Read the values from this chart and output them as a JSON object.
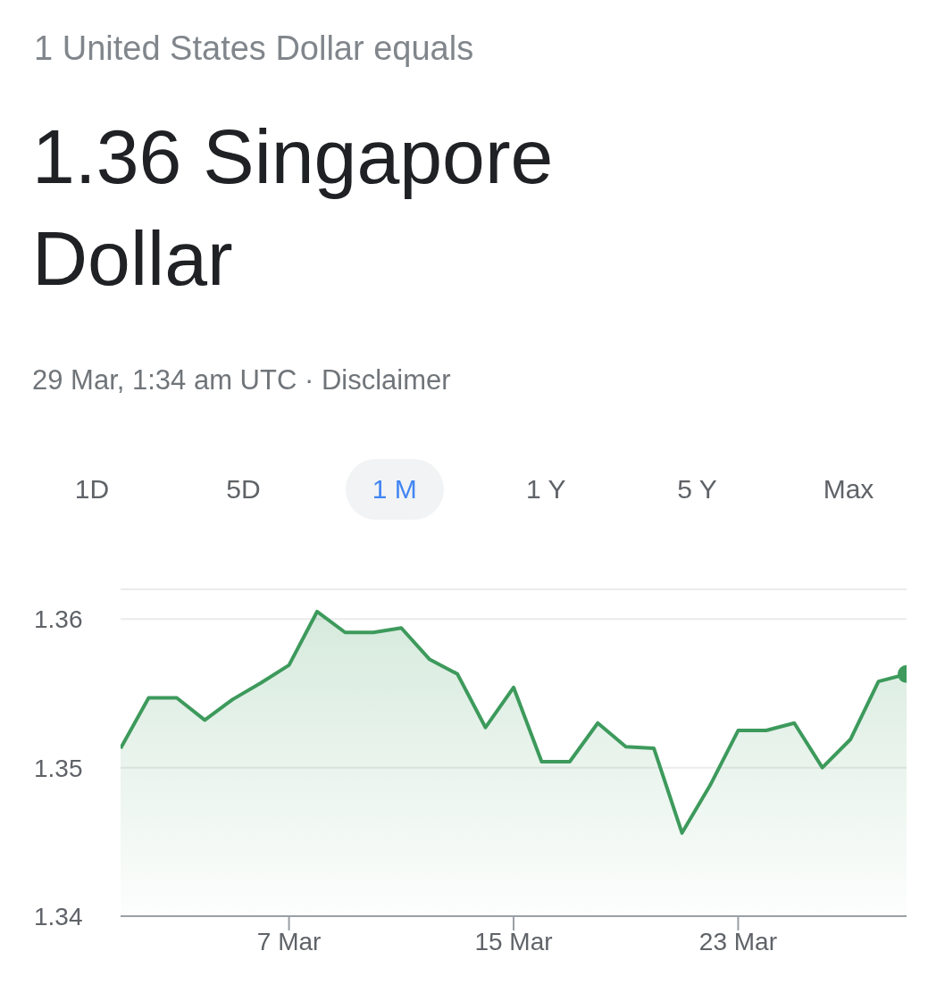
{
  "chart_data": {
    "type": "area",
    "subtitle": "1 United States Dollar equals",
    "title": "1.36 Singapore Dollar",
    "annotations": [
      "29 Mar, 1:34 am UTC · Disclaimer",
      "1D",
      "5D",
      "1 M",
      "1 Y",
      "5 Y",
      "Max"
    ],
    "x": [
      "--03-01",
      "--03-02",
      "--03-03",
      "--03-04",
      "--03-05",
      "--03-06",
      "--03-07",
      "--03-08",
      "--03-09",
      "--03-10",
      "--03-11",
      "--03-12",
      "--03-13",
      "--03-14",
      "--03-15",
      "--03-16",
      "--03-17",
      "--03-18",
      "--03-19",
      "--03-20",
      "--03-21",
      "--03-22",
      "--03-23",
      "--03-24",
      "--03-25",
      "--03-26",
      "--03-27",
      "--03-28",
      "--03-29"
    ],
    "series": [
      {
        "color": "#3d9a5c",
        "values": [
          1.3513,
          1.3547,
          1.3547,
          1.3532,
          1.3546,
          1.3557,
          1.3569,
          1.3605,
          1.3591,
          1.3591,
          1.3594,
          1.3573,
          1.3563,
          1.3527,
          1.3554,
          1.3504,
          1.3504,
          1.353,
          1.3514,
          1.3513,
          1.3456,
          1.3488,
          1.3525,
          1.3525,
          1.353,
          1.35,
          1.3519,
          1.3558,
          1.3563
        ]
      }
    ],
    "xlim": [
      "--03-01",
      "--03-29"
    ],
    "xticks": [
      {
        "value": "--03-07",
        "label": "7 Mar"
      },
      {
        "value": "--03-15",
        "label": "15 Mar"
      },
      {
        "value": "--03-23",
        "label": "23 Mar"
      }
    ],
    "ylim": [
      1.34,
      1.362
    ],
    "yticks": [
      1.34,
      1.35,
      1.36
    ],
    "grid": "y"
  }
}
